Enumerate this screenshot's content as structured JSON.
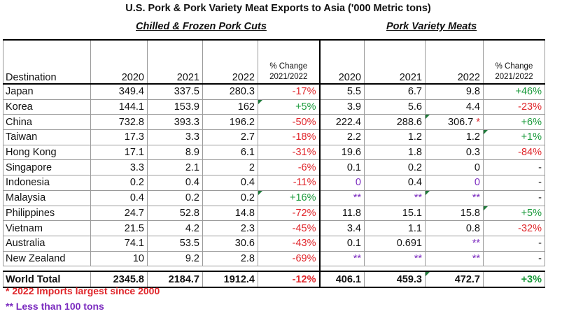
{
  "title": "U.S. Pork & Pork Variety Meat Exports to Asia ('000 Metric tons)",
  "section_left": "Chilled & Frozen Pork Cuts",
  "section_right": "Pork Variety Meats",
  "headers": {
    "destination": "Destination",
    "y2020": "2020",
    "y2021": "2021",
    "y2022": "2022",
    "pct_change_l1": "% Change",
    "pct_change_l2": "2021/2022"
  },
  "rows": [
    {
      "dest": "Japan",
      "c2020": "349.4",
      "c2021": "337.5",
      "c2022": "280.3",
      "cpct": "-17%",
      "v2020": "5.5",
      "v2021": "6.7",
      "v2022": "9.8",
      "vpct": "+46%"
    },
    {
      "dest": "Korea",
      "c2020": "144.1",
      "c2021": "153.9",
      "c2022": "162",
      "cpct": "+5%",
      "v2020": "3.9",
      "v2021": "5.6",
      "v2022": "4.4",
      "vpct": "-23%"
    },
    {
      "dest": "China",
      "c2020": "732.8",
      "c2021": "393.3",
      "c2022": "196.2",
      "cpct": "-50%",
      "v2020": "222.4",
      "v2021": "288.6",
      "v2022": "306.7",
      "v2022_mark": "*",
      "vpct": "+6%"
    },
    {
      "dest": "Taiwan",
      "c2020": "17.3",
      "c2021": "3.3",
      "c2022": "2.7",
      "cpct": "-18%",
      "v2020": "2.2",
      "v2021": "1.2",
      "v2022": "1.2",
      "vpct": "+1%"
    },
    {
      "dest": "Hong Kong",
      "c2020": "17.1",
      "c2021": "8.9",
      "c2022": "6.1",
      "cpct": "-31%",
      "v2020": "19.6",
      "v2021": "1.8",
      "v2022": "0.3",
      "vpct": "-84%"
    },
    {
      "dest": "Singapore",
      "c2020": "3.3",
      "c2021": "2.1",
      "c2022": "2",
      "cpct": "-6%",
      "v2020": "0.1",
      "v2021": "0.2",
      "v2022": "0",
      "vpct": "-"
    },
    {
      "dest": "Indonesia",
      "c2020": "0.2",
      "c2021": "0.4",
      "c2022": "0.4",
      "cpct": "-11%",
      "v2020": "0",
      "v2021": "0.4",
      "v2022": "0",
      "vpct": "-"
    },
    {
      "dest": "Malaysia",
      "c2020": "0.4",
      "c2021": "0.2",
      "c2022": "0.2",
      "cpct": "+16%",
      "v2020": "**",
      "v2021": "**",
      "v2022": "**",
      "vpct": "-"
    },
    {
      "dest": "Philippines",
      "c2020": "24.7",
      "c2021": "52.8",
      "c2022": "14.8",
      "cpct": "-72%",
      "v2020": "11.8",
      "v2021": "15.1",
      "v2022": "15.8",
      "vpct": "+5%"
    },
    {
      "dest": "Vietnam",
      "c2020": "21.5",
      "c2021": "4.2",
      "c2022": "2.3",
      "cpct": "-45%",
      "v2020": "3.4",
      "v2021": "1.1",
      "v2022": "0.8",
      "vpct": "-32%"
    },
    {
      "dest": "Australia",
      "c2020": "74.1",
      "c2021": "53.5",
      "c2022": "30.6",
      "cpct": "-43%",
      "v2020": "0.1",
      "v2021": "0.691",
      "v2022": "**",
      "vpct": "-"
    },
    {
      "dest": "New Zealand",
      "c2020": "10",
      "c2021": "9.2",
      "c2022": "2.8",
      "cpct": "-69%",
      "v2020": "**",
      "v2021": "**",
      "v2022": "**",
      "vpct": "-"
    }
  ],
  "total": {
    "dest": "World Total",
    "c2020": "2345.8",
    "c2021": "2184.7",
    "c2022": "1912.4",
    "cpct": "-12%",
    "v2020": "406.1",
    "v2021": "459.3",
    "v2022": "472.7",
    "vpct": "+3%"
  },
  "footnotes": {
    "star": "* 2022 Imports largest since 2000",
    "double_star": "** Less than 100 tons"
  },
  "colors": {
    "negative": "#e0262b",
    "positive": "#1a9a3b",
    "less_than_100_tons": "#7b2bbf",
    "error_indicator": "#1f7a3a"
  }
}
